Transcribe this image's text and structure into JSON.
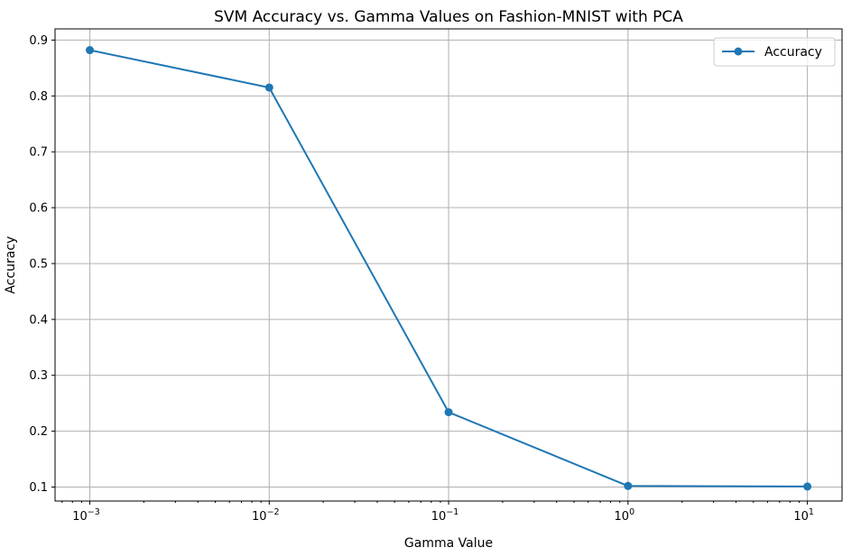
{
  "chart_data": {
    "type": "line",
    "title": "SVM Accuracy vs. Gamma Values on Fashion-MNIST with PCA",
    "xlabel": "Gamma Value",
    "ylabel": "Accuracy",
    "x_scale": "log",
    "xlim": [
      0.00064,
      15.6
    ],
    "ylim": [
      0.075,
      0.92
    ],
    "grid": true,
    "legend_position": "top-right",
    "x_ticks": [
      {
        "value": 0.001,
        "base": "10",
        "exponent": "−3"
      },
      {
        "value": 0.01,
        "base": "10",
        "exponent": "−2"
      },
      {
        "value": 0.1,
        "base": "10",
        "exponent": "−1"
      },
      {
        "value": 1,
        "base": "10",
        "exponent": "0"
      },
      {
        "value": 10,
        "base": "10",
        "exponent": "1"
      }
    ],
    "y_ticks": [
      {
        "value": 0.1,
        "label": "0.1"
      },
      {
        "value": 0.2,
        "label": "0.2"
      },
      {
        "value": 0.3,
        "label": "0.3"
      },
      {
        "value": 0.4,
        "label": "0.4"
      },
      {
        "value": 0.5,
        "label": "0.5"
      },
      {
        "value": 0.6,
        "label": "0.6"
      },
      {
        "value": 0.7,
        "label": "0.7"
      },
      {
        "value": 0.8,
        "label": "0.8"
      },
      {
        "value": 0.9,
        "label": "0.9"
      }
    ],
    "series": [
      {
        "name": "Accuracy",
        "color": "#1f77b4",
        "marker": "circle",
        "x": [
          0.001,
          0.01,
          0.1,
          1,
          10
        ],
        "y": [
          0.882,
          0.815,
          0.234,
          0.102,
          0.101
        ]
      }
    ]
  }
}
